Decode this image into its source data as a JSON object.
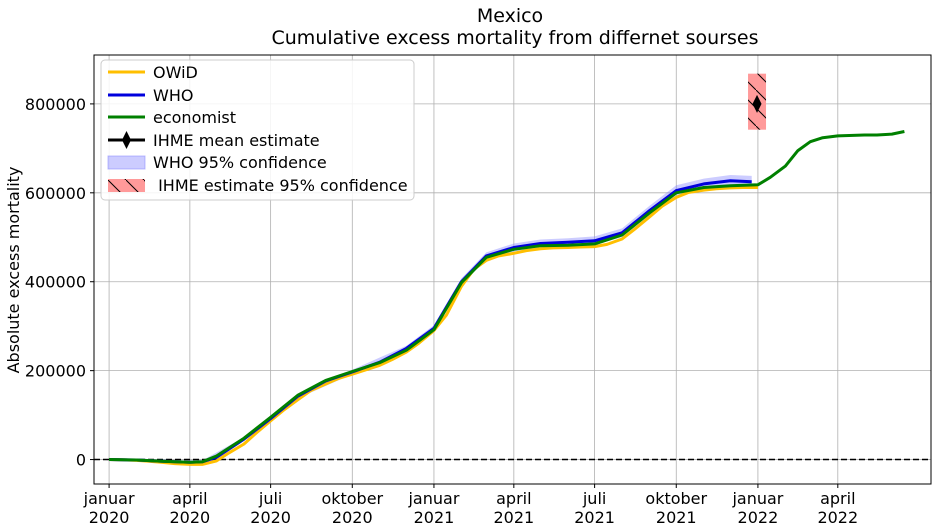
{
  "chart_data": {
    "type": "line",
    "title": "Mexico",
    "subtitle": "Cumulative excess mortality from differnet sourses",
    "ylabel": "Absolute excess mortality",
    "xlabel": "",
    "x_range": [
      "2019-12-15",
      "2022-07-15"
    ],
    "ylim": [
      -55000,
      910000
    ],
    "grid": true,
    "legend_position": "top-left",
    "x_ticks": [
      {
        "date": "2020-01-01",
        "label1": "januar",
        "label2": "2020"
      },
      {
        "date": "2020-04-01",
        "label1": "april",
        "label2": "2020"
      },
      {
        "date": "2020-07-01",
        "label1": "juli",
        "label2": "2020"
      },
      {
        "date": "2020-10-01",
        "label1": "oktober",
        "label2": "2020"
      },
      {
        "date": "2021-01-01",
        "label1": "januar",
        "label2": "2021"
      },
      {
        "date": "2021-04-01",
        "label1": "april",
        "label2": "2021"
      },
      {
        "date": "2021-07-01",
        "label1": "juli",
        "label2": "2021"
      },
      {
        "date": "2021-10-01",
        "label1": "oktober",
        "label2": "2021"
      },
      {
        "date": "2022-01-01",
        "label1": "januar",
        "label2": "2022"
      },
      {
        "date": "2022-04-01",
        "label1": "april",
        "label2": "2022"
      }
    ],
    "y_ticks": [
      0,
      200000,
      400000,
      600000,
      800000
    ],
    "zero_line": {
      "y": 0,
      "style": "dashed",
      "color": "#000000"
    },
    "series": [
      {
        "name": "OWiD",
        "color": "#FFBF00",
        "points": [
          [
            "2020-01-01",
            0
          ],
          [
            "2020-01-15",
            -500
          ],
          [
            "2020-02-01",
            -2000
          ],
          [
            "2020-02-15",
            -4000
          ],
          [
            "2020-03-01",
            -6500
          ],
          [
            "2020-03-15",
            -9000
          ],
          [
            "2020-04-01",
            -11000
          ],
          [
            "2020-04-15",
            -11000
          ],
          [
            "2020-05-01",
            -3000
          ],
          [
            "2020-05-15",
            15000
          ],
          [
            "2020-06-01",
            35000
          ],
          [
            "2020-06-15",
            60000
          ],
          [
            "2020-07-01",
            87000
          ],
          [
            "2020-07-15",
            110000
          ],
          [
            "2020-08-01",
            135000
          ],
          [
            "2020-08-15",
            155000
          ],
          [
            "2020-09-01",
            170000
          ],
          [
            "2020-09-15",
            182000
          ],
          [
            "2020-10-01",
            192000
          ],
          [
            "2020-10-15",
            201000
          ],
          [
            "2020-11-01",
            212000
          ],
          [
            "2020-11-15",
            225000
          ],
          [
            "2020-12-01",
            242000
          ],
          [
            "2020-12-15",
            262000
          ],
          [
            "2021-01-01",
            290000
          ],
          [
            "2021-01-15",
            325000
          ],
          [
            "2021-02-01",
            390000
          ],
          [
            "2021-02-15",
            428000
          ],
          [
            "2021-03-01",
            448000
          ],
          [
            "2021-03-15",
            458000
          ],
          [
            "2021-04-01",
            464000
          ],
          [
            "2021-04-15",
            470000
          ],
          [
            "2021-05-01",
            474000
          ],
          [
            "2021-05-15",
            476000
          ],
          [
            "2021-06-01",
            477000
          ],
          [
            "2021-06-15",
            478000
          ],
          [
            "2021-07-01",
            479000
          ],
          [
            "2021-07-15",
            484000
          ],
          [
            "2021-08-01",
            496000
          ],
          [
            "2021-08-15",
            518000
          ],
          [
            "2021-09-01",
            546000
          ],
          [
            "2021-09-15",
            570000
          ],
          [
            "2021-10-01",
            590000
          ],
          [
            "2021-10-15",
            601000
          ],
          [
            "2021-11-01",
            606000
          ],
          [
            "2021-11-15",
            609000
          ],
          [
            "2021-12-01",
            611000
          ],
          [
            "2021-12-15",
            612000
          ],
          [
            "2022-01-01",
            612000
          ]
        ]
      },
      {
        "name": "WHO",
        "color": "#0000DD",
        "points": [
          [
            "2020-01-01",
            0
          ],
          [
            "2020-02-01",
            -1000
          ],
          [
            "2020-03-01",
            -4000
          ],
          [
            "2020-04-01",
            -6000
          ],
          [
            "2020-04-15",
            -5000
          ],
          [
            "2020-05-01",
            5000
          ],
          [
            "2020-06-01",
            46000
          ],
          [
            "2020-07-01",
            92000
          ],
          [
            "2020-08-01",
            143000
          ],
          [
            "2020-09-01",
            177000
          ],
          [
            "2020-10-01",
            197000
          ],
          [
            "2020-11-01",
            219000
          ],
          [
            "2020-12-01",
            250000
          ],
          [
            "2021-01-01",
            295000
          ],
          [
            "2021-02-01",
            400000
          ],
          [
            "2021-03-01",
            458000
          ],
          [
            "2021-04-01",
            477000
          ],
          [
            "2021-05-01",
            486000
          ],
          [
            "2021-06-01",
            489000
          ],
          [
            "2021-07-01",
            492000
          ],
          [
            "2021-08-01",
            510000
          ],
          [
            "2021-09-01",
            560000
          ],
          [
            "2021-10-01",
            605000
          ],
          [
            "2021-11-01",
            620000
          ],
          [
            "2021-12-01",
            627000
          ],
          [
            "2021-12-25",
            625000
          ]
        ]
      },
      {
        "name": "economist",
        "color": "#008000",
        "points": [
          [
            "2020-01-01",
            0
          ],
          [
            "2020-02-01",
            -1000
          ],
          [
            "2020-03-01",
            -4000
          ],
          [
            "2020-04-01",
            -6000
          ],
          [
            "2020-04-15",
            -5000
          ],
          [
            "2020-05-01",
            8000
          ],
          [
            "2020-06-01",
            48000
          ],
          [
            "2020-07-01",
            95000
          ],
          [
            "2020-08-01",
            145000
          ],
          [
            "2020-09-01",
            178000
          ],
          [
            "2020-10-01",
            198000
          ],
          [
            "2020-11-01",
            218000
          ],
          [
            "2020-12-01",
            246000
          ],
          [
            "2021-01-01",
            292000
          ],
          [
            "2021-02-01",
            398000
          ],
          [
            "2021-03-01",
            455000
          ],
          [
            "2021-04-01",
            473000
          ],
          [
            "2021-05-01",
            481000
          ],
          [
            "2021-06-01",
            482000
          ],
          [
            "2021-07-01",
            485000
          ],
          [
            "2021-08-01",
            505000
          ],
          [
            "2021-09-01",
            555000
          ],
          [
            "2021-10-01",
            600000
          ],
          [
            "2021-11-01",
            612000
          ],
          [
            "2021-12-01",
            616000
          ],
          [
            "2022-01-01",
            618000
          ],
          [
            "2022-01-15",
            635000
          ],
          [
            "2022-02-01",
            660000
          ],
          [
            "2022-02-15",
            695000
          ],
          [
            "2022-03-01",
            715000
          ],
          [
            "2022-03-15",
            724000
          ],
          [
            "2022-04-01",
            728000
          ],
          [
            "2022-05-01",
            730000
          ],
          [
            "2022-05-15",
            730000
          ],
          [
            "2022-06-01",
            732000
          ],
          [
            "2022-06-15",
            738000
          ]
        ]
      }
    ],
    "who_confidence": {
      "name": "WHO 95% confidence",
      "color": "#8080FF",
      "points": [
        [
          "2020-01-01",
          0,
          2000
        ],
        [
          "2020-03-01",
          -6000,
          -2000
        ],
        [
          "2020-04-15",
          -7000,
          -2000
        ],
        [
          "2020-06-01",
          42000,
          50000
        ],
        [
          "2020-08-01",
          138000,
          148000
        ],
        [
          "2020-10-01",
          192000,
          202000
        ],
        [
          "2020-12-01",
          244000,
          256000
        ],
        [
          "2021-01-01",
          288000,
          302000
        ],
        [
          "2021-02-01",
          394000,
          408000
        ],
        [
          "2021-03-01",
          450000,
          466000
        ],
        [
          "2021-04-01",
          468000,
          486000
        ],
        [
          "2021-05-01",
          477000,
          495000
        ],
        [
          "2021-06-01",
          480000,
          498000
        ],
        [
          "2021-07-01",
          483000,
          502000
        ],
        [
          "2021-08-01",
          500000,
          520000
        ],
        [
          "2021-09-01",
          549000,
          571000
        ],
        [
          "2021-10-01",
          594000,
          617000
        ],
        [
          "2021-11-01",
          608000,
          632000
        ],
        [
          "2021-12-01",
          614000,
          640000
        ],
        [
          "2021-12-25",
          612000,
          638000
        ]
      ]
    },
    "ihme": {
      "mean_name": "IHME mean estimate",
      "confidence_name": " IHME estimate 95% confidence",
      "date": "2021-12-31",
      "mean": 800000,
      "lower": 742000,
      "upper": 868000,
      "confidence_color": "#FF9A9A"
    }
  }
}
